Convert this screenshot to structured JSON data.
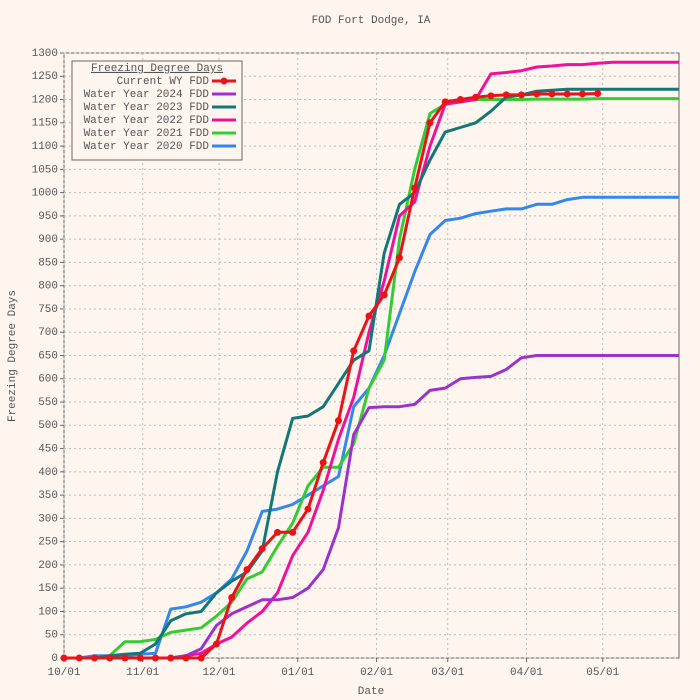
{
  "chart_data": {
    "type": "line",
    "title": "FOD Fort Dodge, IA",
    "xlabel": "Date",
    "ylabel": "Freezing Degree Days",
    "legend_title": "Freezing Degree Days",
    "legend": "upper left",
    "grid": true,
    "x": [
      0,
      6,
      12,
      18,
      24,
      30,
      36,
      42,
      48,
      54,
      60,
      66,
      72,
      78,
      84,
      90,
      96,
      102,
      108,
      114,
      120,
      126,
      132,
      138,
      144,
      150,
      156,
      162,
      168,
      174,
      180,
      186,
      192,
      198,
      204,
      210,
      216,
      222,
      228,
      234,
      240,
      242
    ],
    "xlim": [
      0,
      242
    ],
    "xticks": [
      {
        "value": 0,
        "label": "10/01"
      },
      {
        "value": 31,
        "label": "11/01"
      },
      {
        "value": 61,
        "label": "12/01"
      },
      {
        "value": 92,
        "label": "01/01"
      },
      {
        "value": 123,
        "label": "02/01"
      },
      {
        "value": 151,
        "label": "03/01"
      },
      {
        "value": 182,
        "label": "04/01"
      },
      {
        "value": 212,
        "label": "05/01"
      }
    ],
    "ylim": [
      0,
      1300
    ],
    "yticks": [
      0,
      50,
      100,
      150,
      200,
      250,
      300,
      350,
      400,
      450,
      500,
      550,
      600,
      650,
      700,
      750,
      800,
      850,
      900,
      950,
      1000,
      1050,
      1100,
      1150,
      1200,
      1250,
      1300
    ],
    "series": [
      {
        "name": "Current WY FDD",
        "color": "#e8141a",
        "markers": true,
        "values": [
          0,
          0,
          0,
          0,
          0,
          0,
          0,
          0,
          0,
          0,
          30,
          130,
          190,
          235,
          270,
          270,
          320,
          420,
          510,
          660,
          735,
          780,
          860,
          1010,
          1150,
          1195,
          1200,
          1205,
          1208,
          1210,
          1210,
          1212,
          1212,
          1212,
          1212,
          1213,
          null,
          null,
          null,
          null,
          null,
          null
        ]
      },
      {
        "name": "Water Year 2024 FDD",
        "color": "#9933cc",
        "values": [
          0,
          0,
          0,
          0,
          0,
          0,
          0,
          0,
          5,
          20,
          70,
          95,
          110,
          125,
          125,
          130,
          150,
          190,
          280,
          480,
          538,
          540,
          540,
          545,
          575,
          580,
          600,
          603,
          605,
          620,
          645,
          650,
          650,
          650,
          650,
          650,
          650,
          650,
          650,
          650,
          650,
          650
        ]
      },
      {
        "name": "Water Year 2023 FDD",
        "color": "#117777",
        "values": [
          0,
          0,
          0,
          5,
          8,
          10,
          30,
          80,
          95,
          100,
          140,
          165,
          185,
          230,
          400,
          515,
          520,
          540,
          590,
          640,
          660,
          870,
          975,
          1000,
          1070,
          1130,
          1140,
          1150,
          1175,
          1205,
          1210,
          1218,
          1220,
          1222,
          1222,
          1222,
          1222,
          1222,
          1222,
          1222,
          1222,
          1222
        ]
      },
      {
        "name": "Water Year 2022 FDD",
        "color": "#ee1199",
        "values": [
          0,
          0,
          0,
          0,
          0,
          0,
          0,
          0,
          5,
          10,
          30,
          45,
          75,
          100,
          140,
          220,
          270,
          360,
          470,
          560,
          700,
          810,
          950,
          980,
          1100,
          1190,
          1195,
          1200,
          1255,
          1258,
          1262,
          1270,
          1272,
          1275,
          1275,
          1278,
          1280,
          1280,
          1280,
          1280,
          1280,
          1280
        ]
      },
      {
        "name": "Water Year 2021 FDD",
        "color": "#33cc33",
        "values": [
          0,
          0,
          0,
          5,
          35,
          35,
          40,
          55,
          60,
          65,
          90,
          120,
          170,
          185,
          240,
          290,
          370,
          410,
          410,
          460,
          580,
          640,
          900,
          1050,
          1170,
          1190,
          1195,
          1200,
          1200,
          1200,
          1200,
          1201,
          1201,
          1201,
          1201,
          1202,
          1202,
          1202,
          1202,
          1202,
          1202,
          1202
        ]
      },
      {
        "name": "Water Year 2020 FDD",
        "color": "#3388ee",
        "values": [
          0,
          0,
          5,
          5,
          5,
          8,
          10,
          105,
          110,
          120,
          140,
          170,
          230,
          315,
          320,
          330,
          350,
          370,
          390,
          540,
          580,
          650,
          740,
          830,
          910,
          940,
          945,
          955,
          960,
          965,
          965,
          975,
          975,
          985,
          990,
          990,
          990,
          990,
          990,
          990,
          990,
          990
        ]
      }
    ]
  }
}
